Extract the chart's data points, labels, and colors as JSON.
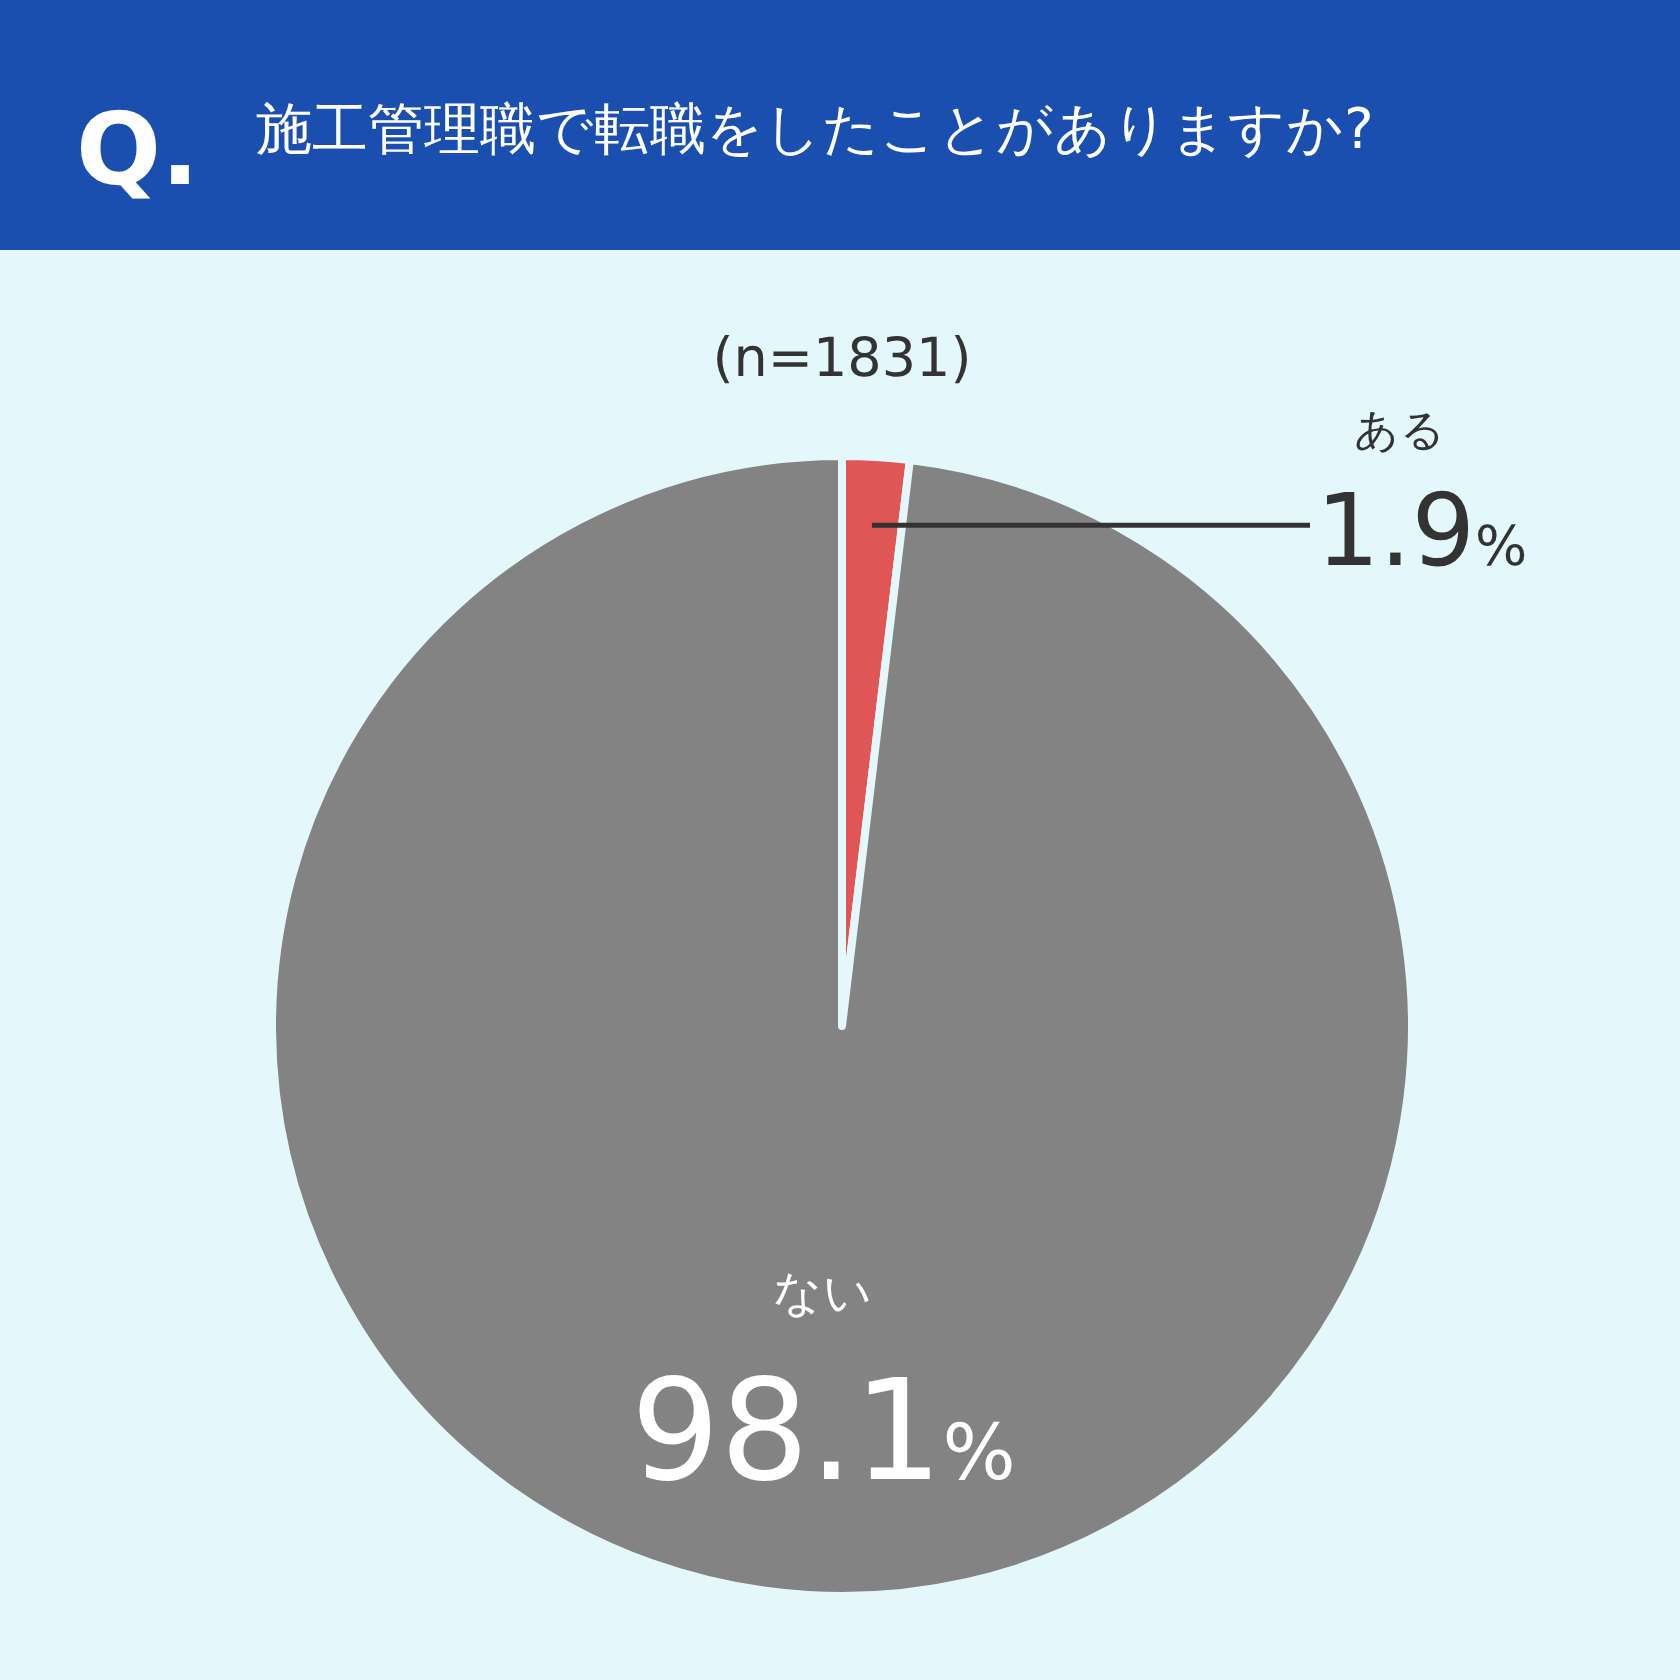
{
  "chart_data": {
    "type": "pie",
    "title": "施工管理職で転職をしたことがありますか?",
    "subtitle": "(n=1831)",
    "annotations": [
      "Q."
    ],
    "categories": [
      "ある",
      "ない"
    ],
    "values": [
      1.9,
      98.1
    ],
    "colors": [
      "#e05555",
      "#838383"
    ],
    "value_labels": [
      "1.9%",
      "98.1%"
    ]
  }
}
